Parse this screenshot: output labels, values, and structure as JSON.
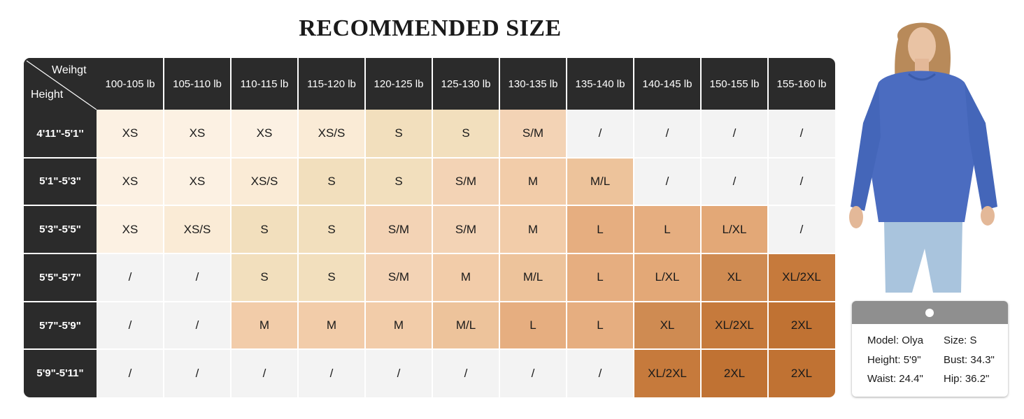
{
  "title": "RECOMMENDED SIZE",
  "corner": {
    "weight_label": "Weihgt",
    "height_label": "Height"
  },
  "weights": [
    "100-105 lb",
    "105-110 lb",
    "110-115 lb",
    "115-120 lb",
    "120-125 lb",
    "125-130 lb",
    "130-135 lb",
    "135-140 lb",
    "140-145 lb",
    "150-155 lb",
    "155-160 lb"
  ],
  "heights": [
    "4'11''-5'1''",
    "5'1\"-5'3\"",
    "5'3\"-5'5\"",
    "5'5\"-5'7\"",
    "5'7\"-5'9\"",
    "5'9\"-5'11\""
  ],
  "sizes": [
    [
      "XS",
      "XS",
      "XS",
      "XS/S",
      "S",
      "S",
      "S/M",
      "/",
      "/",
      "/",
      "/"
    ],
    [
      "XS",
      "XS",
      "XS/S",
      "S",
      "S",
      "S/M",
      "M",
      "M/L",
      "/",
      "/",
      "/"
    ],
    [
      "XS",
      "XS/S",
      "S",
      "S",
      "S/M",
      "S/M",
      "M",
      "L",
      "L",
      "L/XL",
      "/"
    ],
    [
      "/",
      "/",
      "S",
      "S",
      "S/M",
      "M",
      "M/L",
      "L",
      "L/XL",
      "XL",
      "XL/2XL"
    ],
    [
      "/",
      "/",
      "M",
      "M",
      "M",
      "M/L",
      "L",
      "L",
      "XL",
      "XL/2XL",
      "2XL"
    ],
    [
      "/",
      "/",
      "/",
      "/",
      "/",
      "/",
      "/",
      "/",
      "XL/2XL",
      "2XL",
      "2XL"
    ]
  ],
  "size_colors": {
    "XS": "#fcf1e3",
    "XS/S": "#faebd6",
    "S": "#f2dfbd",
    "S/M": "#f3d3b5",
    "M": "#f2cca9",
    "M/L": "#edc39b",
    "L": "#e6ae80",
    "L/XL": "#e3a877",
    "XL": "#cf8b52",
    "XL/2XL": "#c67a3c",
    "2XL": "#c07233",
    "/": "#f3f3f3"
  },
  "model": {
    "image": "model-photo",
    "name": "Model: Olya",
    "size": "Size: S",
    "height": "Height: 5'9\"",
    "bust": "Bust: 34.3\"",
    "waist": "Waist: 24.4\"",
    "hip": "Hip: 36.2\""
  }
}
